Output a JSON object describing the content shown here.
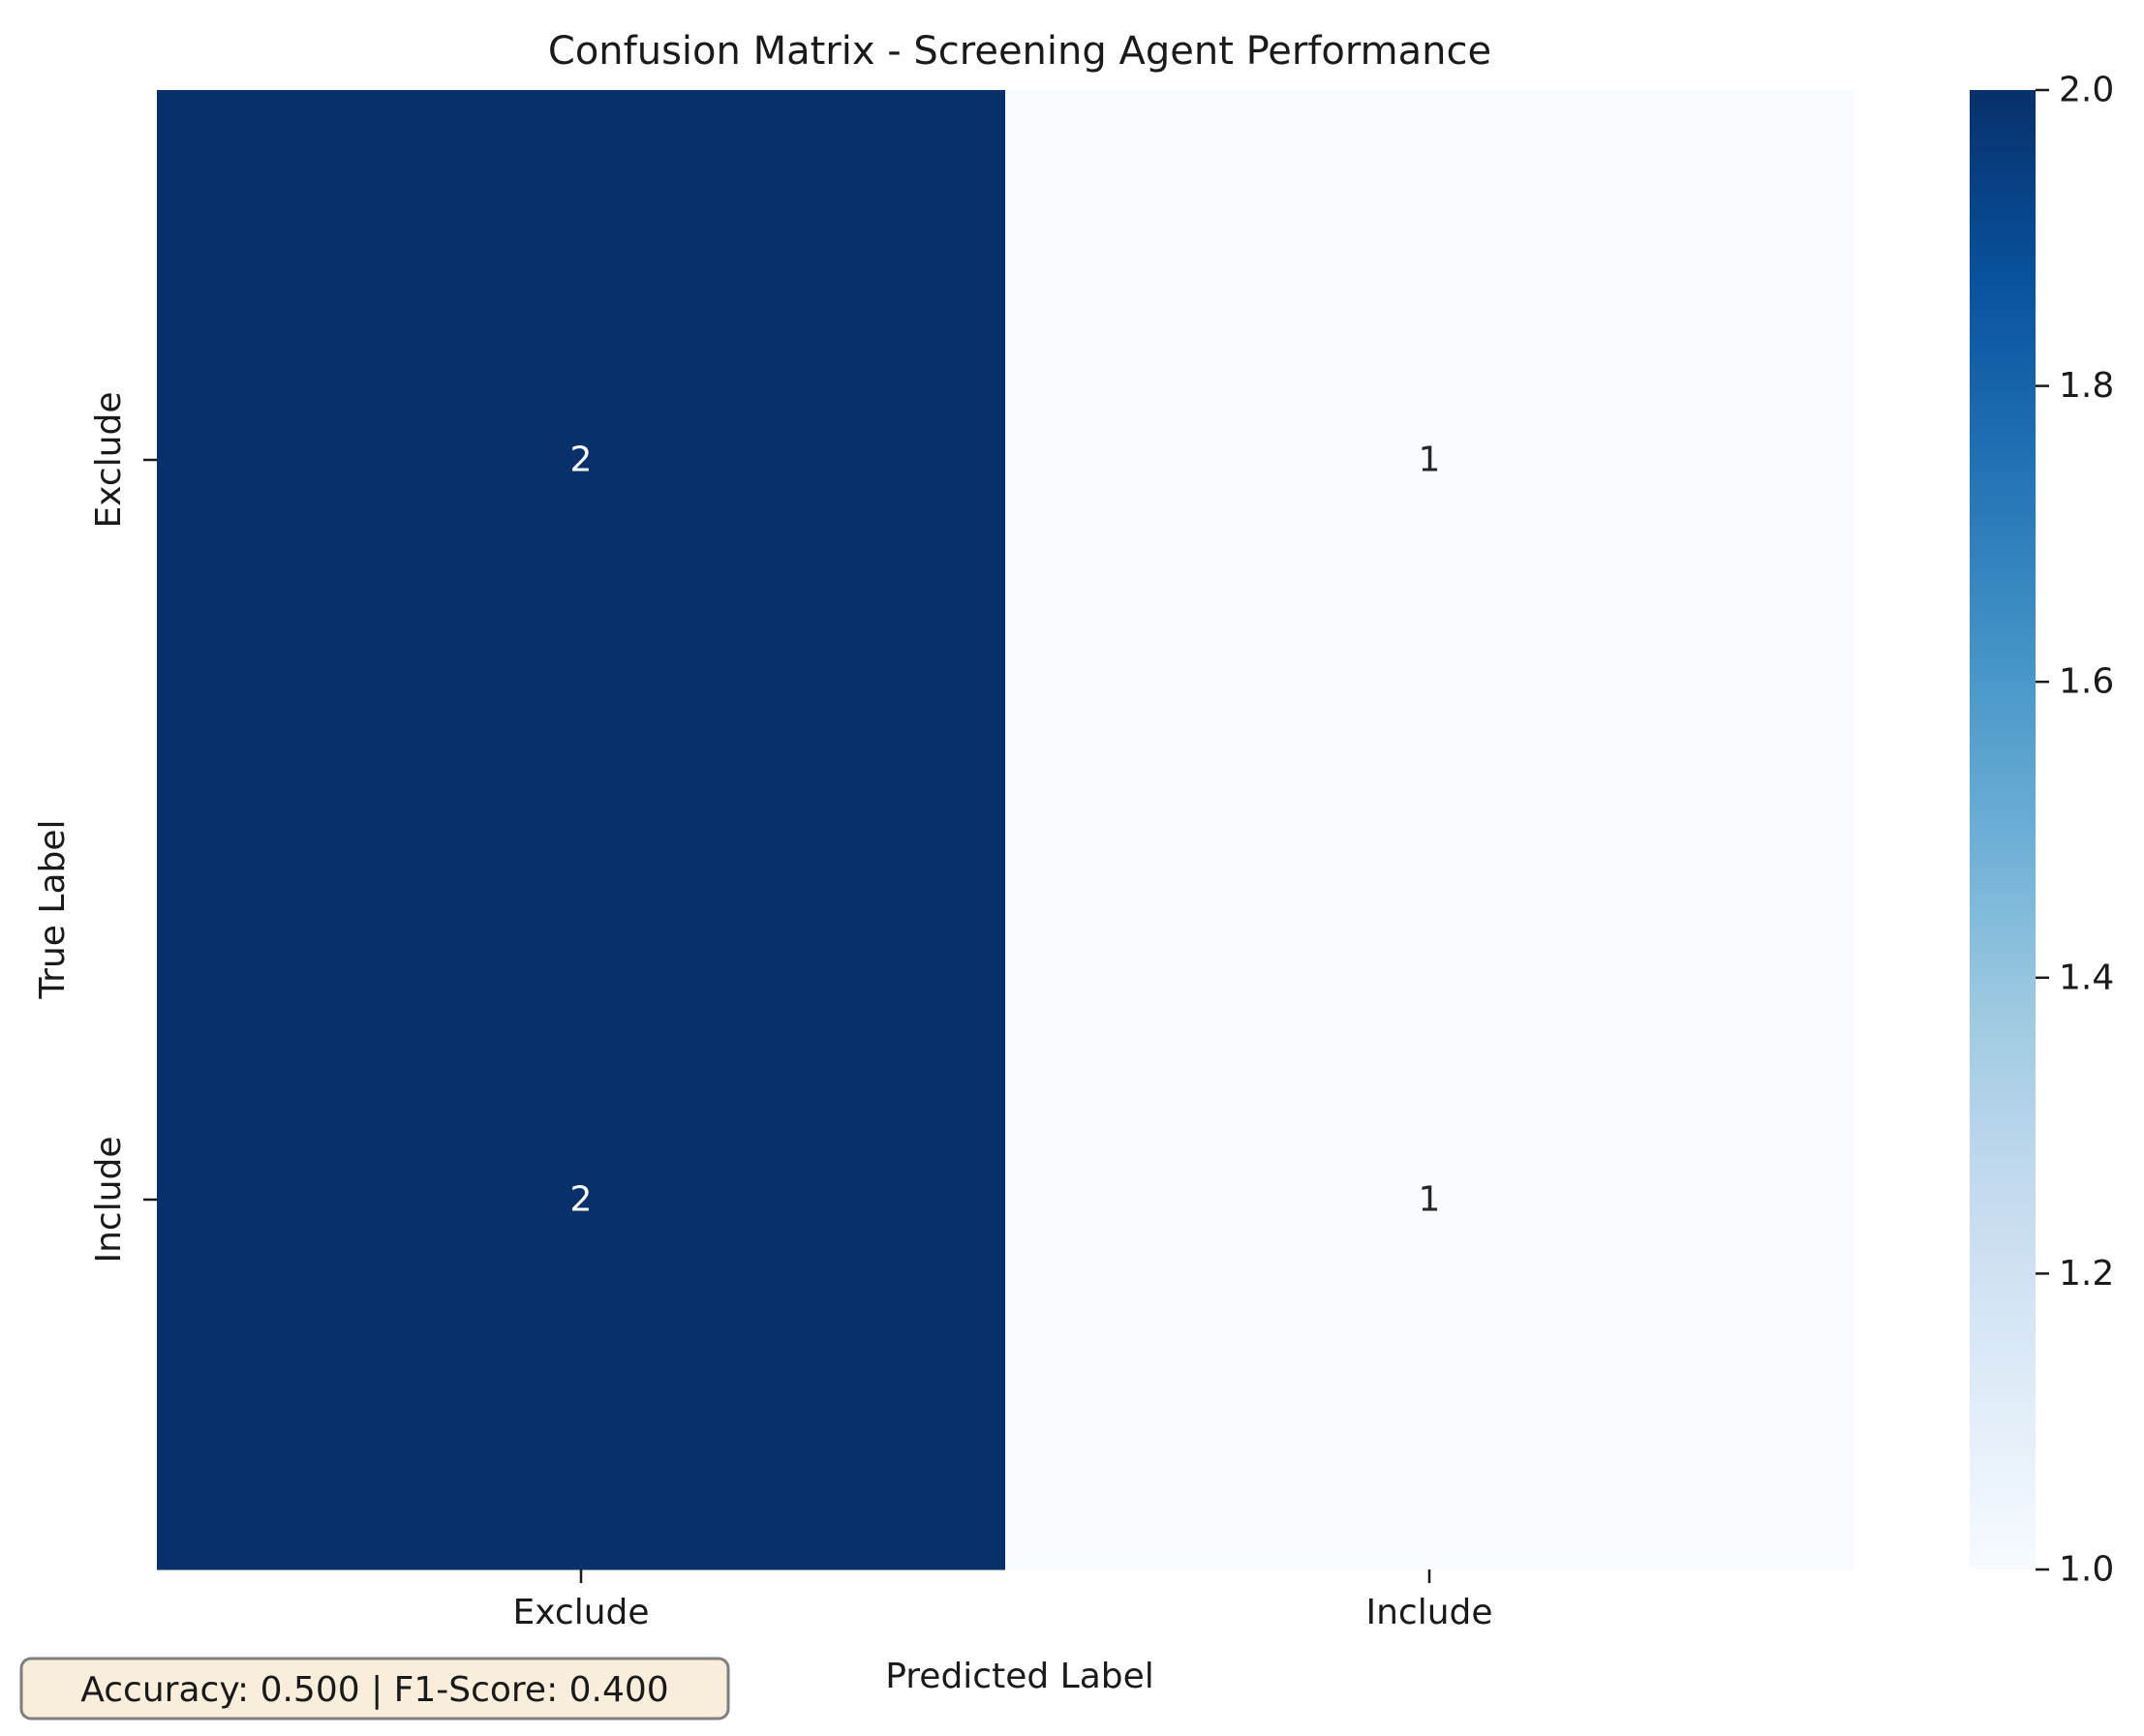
{
  "chart_data": {
    "type": "heatmap",
    "title": "Confusion Matrix - Screening Agent Performance",
    "xlabel": "Predicted Label",
    "ylabel": "True Label",
    "x_categories": [
      "Exclude",
      "Include"
    ],
    "y_categories": [
      "Exclude",
      "Include"
    ],
    "values": [
      [
        2,
        1
      ],
      [
        2,
        1
      ]
    ],
    "colormap": "Blues",
    "colorbar": {
      "range": [
        1.0,
        2.0
      ],
      "ticks": [
        "1.0",
        "1.2",
        "1.4",
        "1.6",
        "1.8",
        "2.0"
      ],
      "low_color": "#f7fbff",
      "high_color": "#08306b"
    },
    "annotation_colors": {
      "on_dark": "#ffffff",
      "on_light": "#262626"
    },
    "grid": false
  },
  "metrics_box": {
    "text": "Accuracy: 0.500 | F1-Score: 0.400",
    "background": "#f8eedb",
    "border": "#7f7f7f"
  }
}
